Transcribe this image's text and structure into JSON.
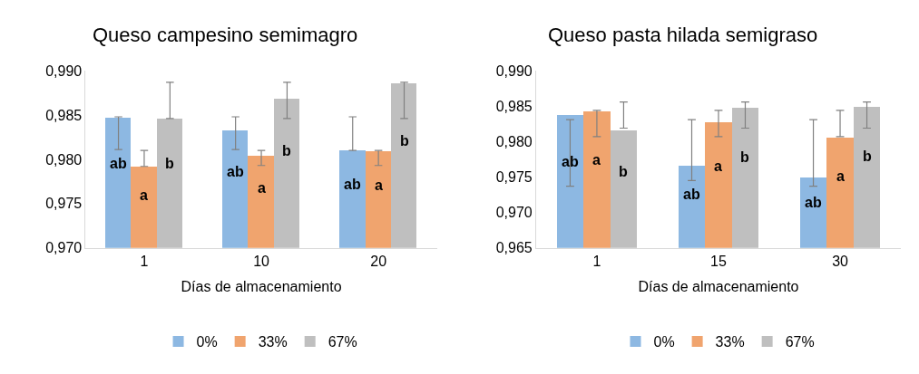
{
  "chart_data": [
    {
      "type": "bar",
      "title": "Queso campesino semimagro",
      "xlabel": "Días de almacenamiento",
      "categories": [
        "1",
        "10",
        "20"
      ],
      "ylim": [
        0.97,
        0.99
      ],
      "yticks": [
        {
          "value": 0.97,
          "label": "0,970"
        },
        {
          "value": 0.975,
          "label": "0,975"
        },
        {
          "value": 0.98,
          "label": "0,980"
        },
        {
          "value": 0.985,
          "label": "0,985"
        },
        {
          "value": 0.99,
          "label": "0,990"
        }
      ],
      "grid": false,
      "legend": "bottom",
      "series": [
        {
          "name": "0%",
          "color": "#8db8e2",
          "values": [
            0.9847,
            0.9832,
            0.981
          ],
          "errors": [
            [
              0.9811,
              0.9848
            ],
            [
              0.9811,
              0.9848
            ],
            [
              0.981,
              0.9848
            ]
          ],
          "value_labels": [
            "ab",
            "ab",
            "ab"
          ]
        },
        {
          "name": "33%",
          "color": "#f0a46e",
          "values": [
            0.9792,
            0.9804,
            0.9809
          ],
          "errors": [
            [
              0.9792,
              0.981
            ],
            [
              0.9793,
              0.981
            ],
            [
              0.9793,
              0.981
            ]
          ],
          "value_labels": [
            "a",
            "a",
            "a"
          ]
        },
        {
          "name": "67%",
          "color": "#bfbfbf",
          "values": [
            0.9846,
            0.9868,
            0.9886
          ],
          "errors": [
            [
              0.9846,
              0.9887
            ],
            [
              0.9846,
              0.9887
            ],
            [
              0.9846,
              0.9887
            ]
          ],
          "value_labels": [
            "b",
            "b",
            "b"
          ]
        }
      ]
    },
    {
      "type": "bar",
      "title": "Queso pasta hilada semigraso",
      "xlabel": "Días de almacenamiento",
      "categories": [
        "1",
        "15",
        "30"
      ],
      "ylim": [
        0.965,
        0.99
      ],
      "yticks": [
        {
          "value": 0.965,
          "label": "0,965"
        },
        {
          "value": 0.97,
          "label": "0,970"
        },
        {
          "value": 0.975,
          "label": "0,975"
        },
        {
          "value": 0.98,
          "label": "0,980"
        },
        {
          "value": 0.985,
          "label": "0,985"
        },
        {
          "value": 0.99,
          "label": "0,990"
        }
      ],
      "grid": false,
      "legend": "bottom",
      "series": [
        {
          "name": "0%",
          "color": "#8db8e2",
          "values": [
            0.9837,
            0.9766,
            0.9749
          ],
          "errors": [
            [
              0.9737,
              0.9831
            ],
            [
              0.9745,
              0.9831
            ],
            [
              0.9737,
              0.9831
            ]
          ],
          "value_labels": [
            "ab",
            "ab",
            "ab"
          ]
        },
        {
          "name": "33%",
          "color": "#f0a46e",
          "values": [
            0.9842,
            0.9827,
            0.9806
          ],
          "errors": [
            [
              0.9807,
              0.9844
            ],
            [
              0.9807,
              0.9844
            ],
            [
              0.9807,
              0.9844
            ]
          ],
          "value_labels": [
            "a",
            "a",
            "a"
          ]
        },
        {
          "name": "67%",
          "color": "#bfbfbf",
          "values": [
            0.9816,
            0.9848,
            0.9849
          ],
          "errors": [
            [
              0.9819,
              0.9856
            ],
            [
              0.9819,
              0.9856
            ],
            [
              0.9819,
              0.9856
            ]
          ],
          "value_labels": [
            "b",
            "b",
            "b"
          ]
        }
      ]
    }
  ]
}
